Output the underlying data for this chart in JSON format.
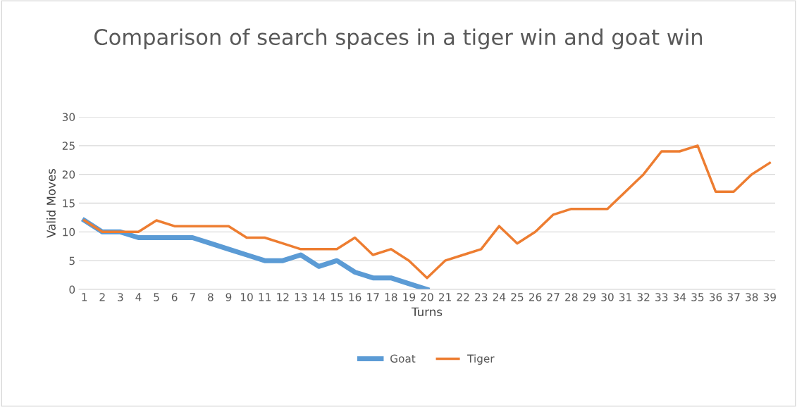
{
  "chart_data": {
    "type": "line",
    "title": "Comparison of search spaces in a tiger win and goat win",
    "xlabel": "Turns",
    "ylabel": "Valid Moves",
    "categories": [
      "1",
      "2",
      "3",
      "4",
      "5",
      "6",
      "7",
      "8",
      "9",
      "10",
      "11",
      "12",
      "13",
      "14",
      "15",
      "16",
      "17",
      "18",
      "19",
      "20",
      "21",
      "22",
      "23",
      "24",
      "25",
      "26",
      "27",
      "28",
      "29",
      "30",
      "31",
      "32",
      "33",
      "34",
      "35",
      "36",
      "37",
      "38",
      "39"
    ],
    "series": [
      {
        "name": "Goat",
        "color": "#5b9bd5",
        "values": [
          12,
          10,
          10,
          9,
          9,
          9,
          9,
          8,
          7,
          6,
          5,
          5,
          6,
          4,
          5,
          3,
          2,
          2,
          1,
          0,
          null,
          null,
          null,
          null,
          null,
          null,
          null,
          null,
          null,
          null,
          null,
          null,
          null,
          null,
          null,
          null,
          null,
          null,
          null
        ]
      },
      {
        "name": "Tiger",
        "color": "#ed7d31",
        "values": [
          12,
          10,
          10,
          10,
          12,
          11,
          11,
          11,
          11,
          9,
          9,
          8,
          7,
          7,
          7,
          9,
          6,
          7,
          5,
          2,
          5,
          6,
          7,
          11,
          8,
          10,
          13,
          14,
          14,
          14,
          17,
          20,
          24,
          24,
          25,
          17,
          17,
          20,
          22
        ]
      }
    ],
    "ylim": [
      0,
      30
    ],
    "yticks": [
      0,
      5,
      10,
      15,
      20,
      25,
      30
    ],
    "grid": "y",
    "legend": "bottom",
    "marker": "none",
    "line_style": "solid"
  }
}
